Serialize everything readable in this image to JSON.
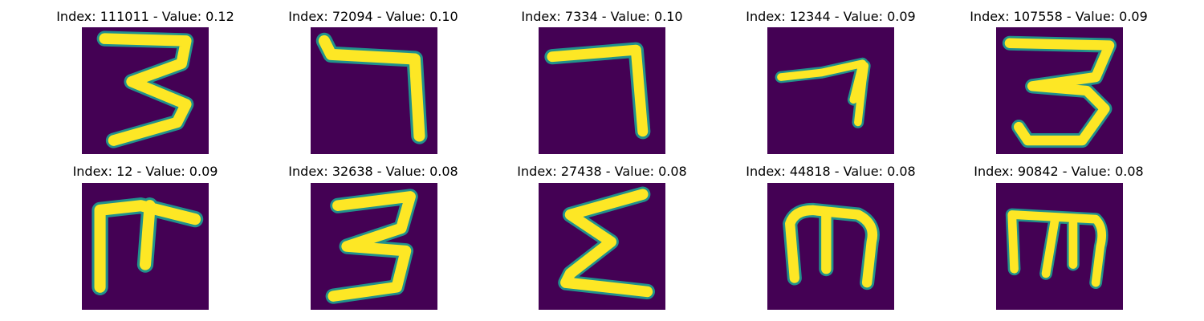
{
  "figure": {
    "background_color": "#440154",
    "stroke_color": "#fde725",
    "edge_color": "#21918c",
    "tiles": [
      {
        "title": "Index: 111011 - Value: 0.12",
        "glyph": "digit-3-shape"
      },
      {
        "title": "Index: 72094 - Value: 0.10",
        "glyph": "digit-7-shape"
      },
      {
        "title": "Index: 7334 - Value: 0.10",
        "glyph": "digit-7-shape"
      },
      {
        "title": "Index: 12344 - Value: 0.09",
        "glyph": "digit-7-shape"
      },
      {
        "title": "Index: 107558 - Value: 0.09",
        "glyph": "digit-3-shape"
      },
      {
        "title": "Index: 12 - Value: 0.09",
        "glyph": "rotated-e-shape"
      },
      {
        "title": "Index: 32638 - Value: 0.08",
        "glyph": "digit-3-shape"
      },
      {
        "title": "Index: 27438 - Value: 0.08",
        "glyph": "sigma-shape"
      },
      {
        "title": "Index: 44818 - Value: 0.08",
        "glyph": "m-shape"
      },
      {
        "title": "Index: 90842 - Value: 0.08",
        "glyph": "m-shape"
      }
    ]
  }
}
